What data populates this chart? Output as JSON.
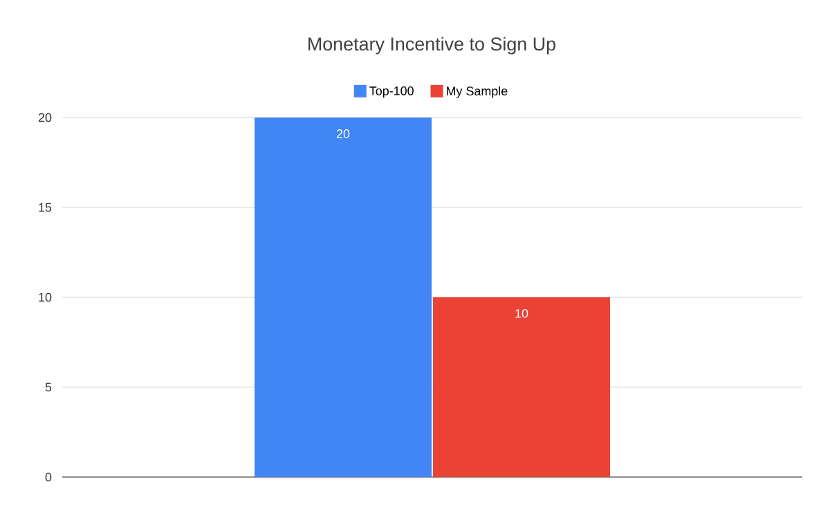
{
  "chart_data": {
    "type": "bar",
    "title": "Monetary Incentive to Sign Up",
    "categories": [
      null
    ],
    "series": [
      {
        "name": "Top-100",
        "color": "#4285f4",
        "values": [
          20
        ]
      },
      {
        "name": "My Sample",
        "color": "#ea4335",
        "values": [
          10
        ]
      }
    ],
    "ylim": [
      0,
      20
    ],
    "yticks": [
      0,
      5,
      10,
      15,
      20
    ],
    "grid": "y",
    "legend": "top",
    "data_labels": true,
    "tick_labels": "y"
  }
}
